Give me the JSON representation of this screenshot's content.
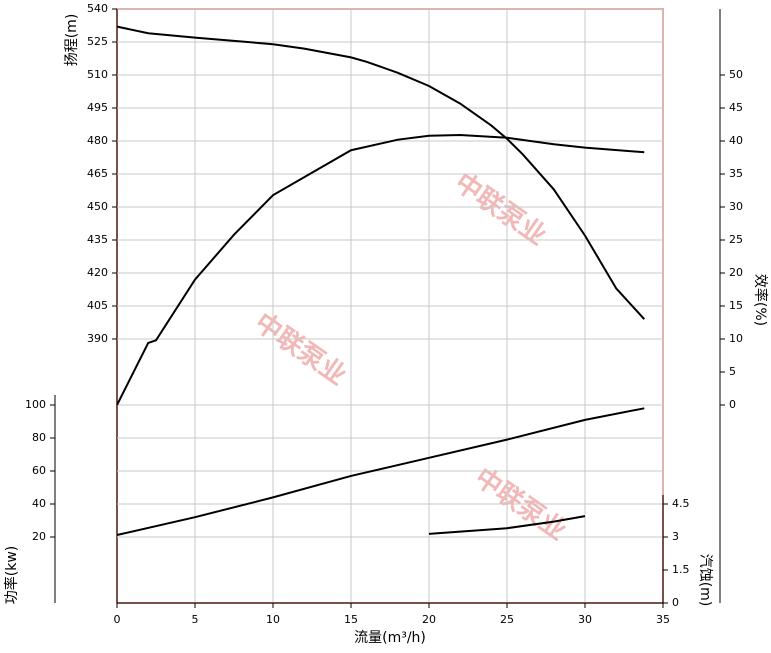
{
  "chart_data": {
    "type": "line",
    "x_label": "流量(m³/h)",
    "xlim": [
      0,
      35
    ],
    "xticks": [
      0,
      5,
      10,
      15,
      20,
      25,
      30,
      35
    ],
    "grid": true,
    "watermark": "中联泵业",
    "axes": [
      {
        "id": "head",
        "label": "扬程(m)",
        "side": "left",
        "lim": [
          270,
          540
        ],
        "ticks": [
          390,
          405,
          420,
          435,
          450,
          465,
          480,
          495,
          510,
          525,
          540
        ]
      },
      {
        "id": "power",
        "label": "功率(kw)",
        "side": "left",
        "lim": [
          -20,
          340
        ],
        "ticks": [
          20,
          40,
          60,
          80,
          100
        ]
      },
      {
        "id": "efficiency",
        "label": "效率(%)",
        "side": "right",
        "lim": [
          -30,
          60
        ],
        "ticks": [
          0,
          5,
          10,
          15,
          20,
          25,
          30,
          35,
          40,
          45,
          50
        ]
      },
      {
        "id": "npsh",
        "label": "汽蚀(m)",
        "side": "right",
        "lim": [
          0,
          27
        ],
        "ticks": [
          0,
          1.5,
          3,
          4.5
        ]
      }
    ],
    "series": [
      {
        "axis": "head",
        "color": "#000000",
        "x": [
          0,
          2,
          5,
          10,
          12,
          15,
          16,
          18,
          20,
          22,
          24,
          25,
          26,
          28,
          30,
          32,
          33.8
        ],
        "values": [
          532,
          529,
          527,
          524,
          522,
          518,
          516,
          511,
          505,
          497,
          487,
          481,
          474,
          458,
          437,
          413,
          399
        ]
      },
      {
        "axis": "efficiency",
        "color": "#000000",
        "x": [
          0,
          2,
          2.5,
          5,
          7.5,
          10,
          15,
          18,
          20,
          22,
          25,
          28,
          30,
          33.8
        ],
        "values": [
          0,
          9.4,
          9.8,
          19,
          25.8,
          31.8,
          38.6,
          40.2,
          40.8,
          40.9,
          40.5,
          39.5,
          39,
          38.3
        ]
      },
      {
        "axis": "power",
        "color": "#000000",
        "x": [
          0,
          5,
          10,
          15,
          20,
          25,
          30,
          33.8
        ],
        "values": [
          21.2,
          32,
          44,
          57,
          68,
          79,
          91,
          98
        ]
      },
      {
        "axis": "npsh",
        "color": "#000000",
        "x": [
          20,
          25,
          28,
          30
        ],
        "values": [
          3.14,
          3.4,
          3.7,
          3.95
        ]
      }
    ]
  }
}
